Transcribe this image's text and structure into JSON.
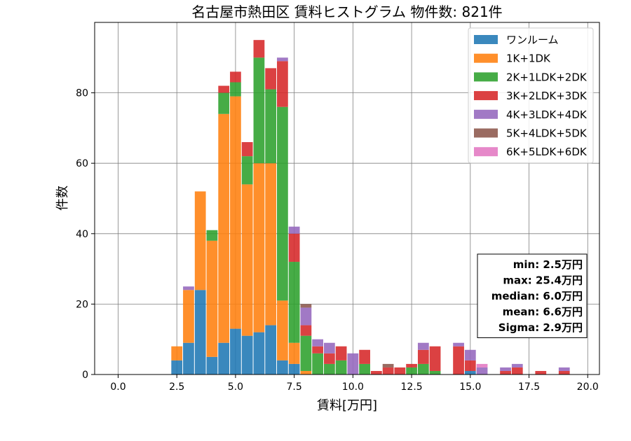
{
  "chart_data": {
    "type": "bar",
    "stacked": true,
    "title": "名古屋市熱田区 賃料ヒストグラム 物件数: 821件",
    "xlabel": "賃料[万円]",
    "ylabel": "件数",
    "xlim": [
      -1.0,
      20.5
    ],
    "ylim": [
      0,
      100
    ],
    "xticks": [
      0.0,
      2.5,
      5.0,
      7.5,
      10.0,
      12.5,
      15.0,
      17.5,
      20.0
    ],
    "xtick_labels": [
      "0.0",
      "2.5",
      "5.0",
      "7.5",
      "10.0",
      "12.5",
      "15.0",
      "17.5",
      "20.0"
    ],
    "yticks": [
      0,
      20,
      40,
      60,
      80
    ],
    "ytick_labels": [
      "0",
      "20",
      "40",
      "60",
      "80"
    ],
    "grid": true,
    "legend_position": "top-right",
    "bin_width": 0.5,
    "bins_start": [
      2.25,
      2.75,
      3.25,
      3.75,
      4.25,
      4.75,
      5.25,
      5.75,
      6.25,
      6.75,
      7.25,
      7.75,
      8.25,
      8.75,
      9.25,
      9.75,
      10.25,
      10.75,
      11.25,
      11.75,
      12.25,
      12.75,
      13.25,
      13.75,
      14.25,
      14.75,
      15.25,
      15.75,
      16.25,
      16.75,
      17.25,
      17.75,
      18.25,
      18.75,
      19.25
    ],
    "series": [
      {
        "name": "ワンルーム",
        "color": "#1f77b4",
        "values": [
          4,
          9,
          24,
          5,
          9,
          13,
          11,
          12,
          14,
          4,
          3,
          0,
          0,
          0,
          0,
          0,
          0,
          0,
          0,
          0,
          0,
          0,
          0,
          0,
          0,
          1,
          0,
          0,
          0,
          0,
          0,
          0,
          0,
          0,
          0
        ]
      },
      {
        "name": "1K+1DK",
        "color": "#ff7f0e",
        "values": [
          4,
          15,
          28,
          33,
          65,
          66,
          43,
          48,
          46,
          17,
          6,
          1,
          0,
          0,
          0,
          0,
          0,
          0,
          0,
          0,
          0,
          0,
          0,
          0,
          0,
          0,
          0,
          0,
          0,
          0,
          0,
          0,
          0,
          0,
          0
        ]
      },
      {
        "name": "2K+1LDK+2DK",
        "color": "#2ca02c",
        "values": [
          0,
          0,
          0,
          3,
          6,
          4,
          8,
          30,
          21,
          55,
          23,
          10,
          6,
          3,
          4,
          0,
          3,
          0,
          0,
          0,
          2,
          3,
          1,
          0,
          0,
          0,
          0,
          0,
          0,
          0,
          0,
          0,
          0,
          0,
          0
        ]
      },
      {
        "name": "3K+2LDK+3DK",
        "color": "#d62728",
        "values": [
          0,
          0,
          0,
          0,
          2,
          3,
          4,
          5,
          6,
          13,
          8,
          3,
          2,
          3,
          4,
          0,
          4,
          1,
          2,
          2,
          1,
          4,
          7,
          0,
          8,
          3,
          0,
          0,
          1,
          2,
          0,
          1,
          0,
          1,
          0
        ]
      },
      {
        "name": "4K+3LDK+4DK",
        "color": "#9467bd",
        "values": [
          0,
          1,
          0,
          0,
          0,
          0,
          0,
          0,
          0,
          1,
          2,
          5,
          2,
          3,
          0,
          6,
          0,
          0,
          0,
          0,
          0,
          2,
          0,
          0,
          1,
          3,
          2,
          0,
          1,
          1,
          0,
          0,
          0,
          1,
          0
        ]
      },
      {
        "name": "5K+4LDK+5DK",
        "color": "#8c564b",
        "values": [
          0,
          0,
          0,
          0,
          0,
          0,
          0,
          0,
          0,
          0,
          0,
          1,
          0,
          0,
          0,
          0,
          0,
          0,
          1,
          0,
          0,
          0,
          0,
          0,
          0,
          0,
          0,
          0,
          0,
          0,
          0,
          0,
          0,
          0,
          0
        ]
      },
      {
        "name": "6K+5LDK+6DK",
        "color": "#e377c2",
        "values": [
          0,
          0,
          0,
          0,
          0,
          0,
          0,
          0,
          0,
          0,
          0,
          0,
          0,
          0,
          0,
          0,
          0,
          0,
          0,
          0,
          0,
          0,
          0,
          0,
          0,
          0,
          1,
          0,
          0,
          0,
          0,
          0,
          0,
          0,
          0
        ]
      }
    ],
    "stats_box": [
      "min: 2.5万円",
      "max: 25.4万円",
      "median: 6.0万円",
      "mean: 6.6万円",
      "Sigma: 2.9万円"
    ]
  }
}
